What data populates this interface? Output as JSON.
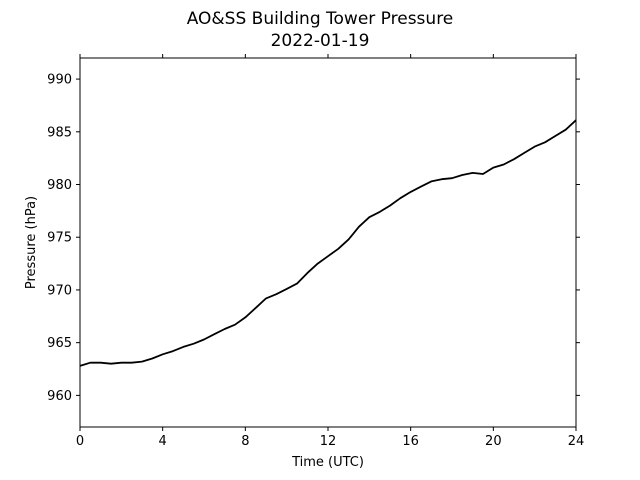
{
  "chart_data": {
    "type": "line",
    "title": "AO&SS Building Tower Pressure",
    "subtitle": "2022-01-19",
    "xlabel": "Time (UTC)",
    "ylabel": "Pressure (hPa)",
    "xlim": [
      0,
      24
    ],
    "ylim": [
      957,
      992
    ],
    "xticks": [
      0,
      4,
      8,
      12,
      16,
      20,
      24
    ],
    "yticks": [
      960,
      965,
      970,
      975,
      980,
      985,
      990
    ],
    "grid": false,
    "line_color": "#000000",
    "series": [
      {
        "x": [
          0,
          0.5,
          1,
          1.5,
          2,
          2.5,
          3,
          3.5,
          4,
          4.5,
          5,
          5.5,
          6,
          6.5,
          7,
          7.5,
          8,
          8.5,
          9,
          9.5,
          10,
          10.5,
          11,
          11.5,
          12,
          12.5,
          13,
          13.5,
          14,
          14.5,
          15,
          15.5,
          16,
          16.5,
          17,
          17.5,
          18,
          18.5,
          19,
          19.5,
          20,
          20.5,
          21,
          21.5,
          22,
          22.5,
          23,
          23.5,
          24
        ],
        "y": [
          962.8,
          963.1,
          963.1,
          963.0,
          963.1,
          963.1,
          963.2,
          963.5,
          963.9,
          964.2,
          964.6,
          964.9,
          965.3,
          965.8,
          966.3,
          966.7,
          967.4,
          968.3,
          969.2,
          969.6,
          970.1,
          970.6,
          971.6,
          972.5,
          973.2,
          973.9,
          974.8,
          976.0,
          976.9,
          977.4,
          978.0,
          978.7,
          979.3,
          979.8,
          980.3,
          980.5,
          980.6,
          980.9,
          981.1,
          981.0,
          981.6,
          981.9,
          982.4,
          983.0,
          983.6,
          984.0,
          984.6,
          985.2,
          986.1
        ]
      }
    ]
  }
}
